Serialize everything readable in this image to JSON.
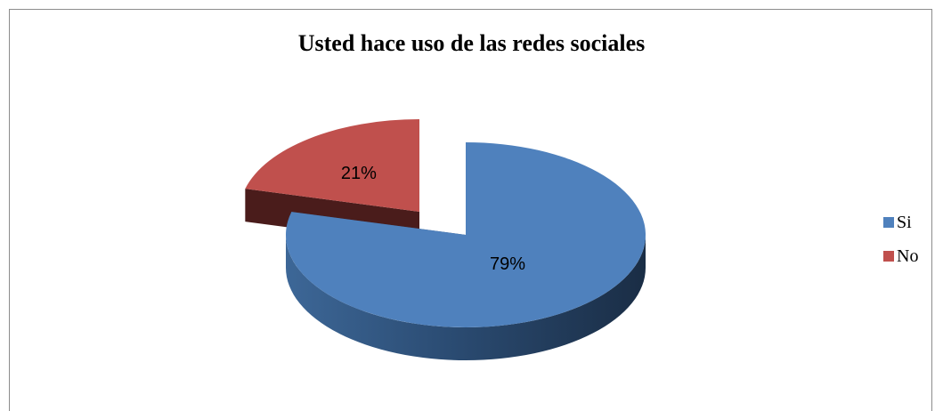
{
  "chart_data": {
    "type": "pie",
    "title": "Usted hace uso de las redes sociales",
    "categories": [
      "Si",
      "No"
    ],
    "values": [
      79,
      21
    ],
    "data_labels": [
      "79%",
      "21%"
    ],
    "colors": [
      "#4f81bd",
      "#c0504d"
    ],
    "exploded": [
      "No"
    ],
    "style": "3d",
    "legend_position": "right"
  }
}
